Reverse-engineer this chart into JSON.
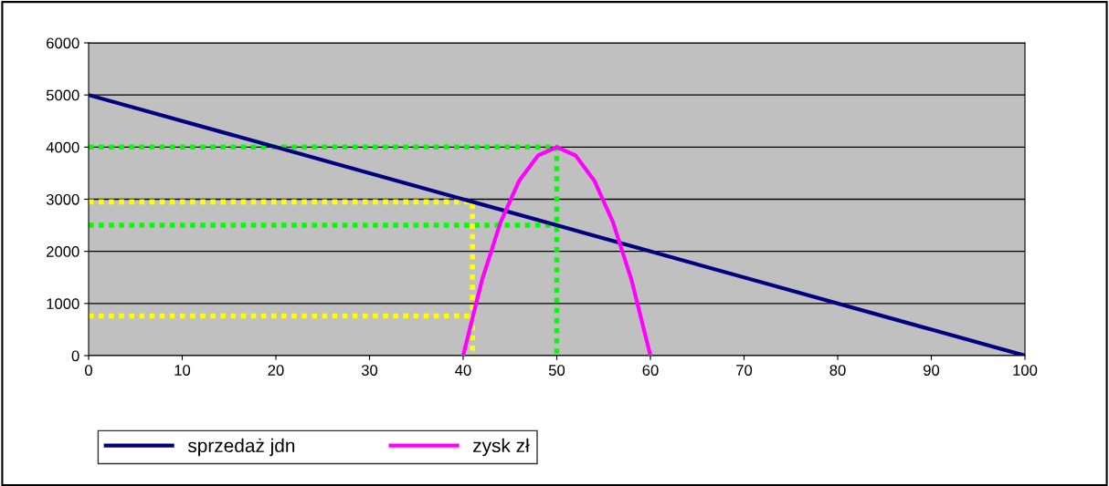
{
  "chart_data": {
    "type": "line",
    "xlim": [
      0,
      100
    ],
    "xticks": [
      0,
      10,
      20,
      30,
      40,
      50,
      60,
      70,
      80,
      90,
      100
    ],
    "ylim": [
      0,
      6000
    ],
    "yticks": [
      0,
      1000,
      2000,
      3000,
      4000,
      5000,
      6000
    ],
    "grid": "y",
    "legend": "bottom",
    "line_style": "solid",
    "marker": "none",
    "series": [
      {
        "name": "sprzedaż jdn",
        "color": "#000080",
        "x": [
          0,
          35,
          50,
          75,
          100
        ],
        "values": [
          5000,
          3250,
          2500,
          1250,
          0
        ]
      },
      {
        "name": "zysk zł",
        "color": "#ff00ff",
        "x": [
          40,
          42,
          44,
          46,
          48,
          50,
          52,
          54,
          56,
          58,
          60
        ],
        "values": [
          0,
          1440,
          2560,
          3360,
          3840,
          4000,
          3840,
          3360,
          2560,
          1440,
          0
        ]
      },
      {
        "color": "#00ff00",
        "line_style": "dotted",
        "x": [
          0,
          50,
          50
        ],
        "values": [
          4000,
          4000,
          0
        ]
      },
      {
        "color": "#00ff00",
        "line_style": "dotted",
        "x": [
          0,
          50
        ],
        "values": [
          2500,
          2500
        ]
      },
      {
        "color": "#ffff00",
        "line_style": "dotted",
        "x": [
          0,
          41,
          41
        ],
        "values": [
          2950,
          2950,
          0
        ]
      },
      {
        "color": "#ffff00",
        "line_style": "dotted",
        "x": [
          0,
          41
        ],
        "values": [
          760,
          760
        ]
      }
    ]
  }
}
